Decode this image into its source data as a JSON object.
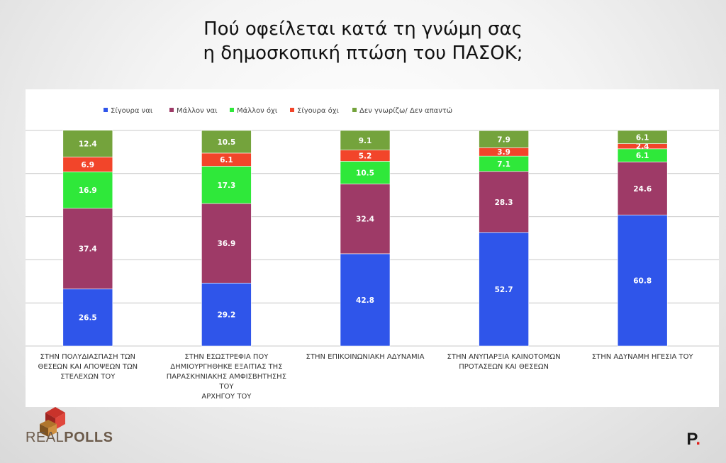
{
  "title_line1": "Πού οφείλεται κατά τη γνώμη σας",
  "title_line2": "η δημοσκοπική πτώση του ΠΑΣΟΚ;",
  "logo_left_text_part1": "REAL",
  "logo_left_text_part2": "POLLS",
  "logo_right_text": "P",
  "logo_right_dot": ".",
  "chart_data": {
    "type": "bar",
    "stacked": true,
    "categories": [
      [
        "ΣΤΗΝ ΠΟΛΥΔΙΑΣΠΑΣΗ ΤΩΝ",
        "ΘΕΣΕΩΝ ΚΑΙ ΑΠΟΨΕΩΝ ΤΩΝ",
        "ΣΤΕΛΕΧΩΝ ΤΟΥ"
      ],
      [
        "ΣΤΗΝ ΕΣΩΣΤΡΕΦΙΑ ΠΟΥ",
        "ΔΗΜΙΟΥΡΓΗΘΗΚΕ ΕΞΑΙΤΙΑΣ ΤΗΣ",
        "ΠΑΡΑΣΚΗΝΙΑΚΗΣ ΑΜΦΙΣΒΗΤΗΣΗΣ",
        "ΤΟΥ",
        "ΑΡΧΗΓΟΥ ΤΟΥ"
      ],
      [
        "ΣΤΗΝ ΕΠΙΚΟΙΝΩΝΙΑΚΗ ΑΔΥΝΑΜΙΑ"
      ],
      [
        "ΣΤΗΝ ΑΝΥΠΑΡΞΙΑ ΚΑΙΝΟΤΟΜΩΝ",
        "ΠΡΟΤΑΣΕΩΝ ΚΑΙ ΘΕΣΕΩΝ"
      ],
      [
        "ΣΤΗΝ ΑΔΥΝΑΜΗ ΗΓΕΣΙΑ ΤΟΥ"
      ]
    ],
    "series": [
      {
        "name": "Σίγουρα ναι",
        "color": "#2f55ea",
        "values": [
          26.5,
          29.2,
          42.8,
          52.7,
          60.8
        ]
      },
      {
        "name": "Μάλλον ναι",
        "color": "#9e3a67",
        "values": [
          37.4,
          36.9,
          32.4,
          28.3,
          24.6
        ]
      },
      {
        "name": "Μάλλον όχι",
        "color": "#2fe83a",
        "values": [
          16.9,
          17.3,
          10.5,
          7.1,
          6.1
        ]
      },
      {
        "name": "Σίγουρα όχι",
        "color": "#f2452a",
        "values": [
          6.9,
          6.1,
          5.2,
          3.9,
          2.4
        ]
      },
      {
        "name": "Δεν γνωρίζω/ Δεν απαντώ",
        "color": "#74a33c",
        "values": [
          12.4,
          10.5,
          9.1,
          7.9,
          6.1
        ]
      }
    ],
    "ylim": [
      0,
      100
    ],
    "grid": true,
    "legend": "top",
    "data_label_color": "#ffffff"
  }
}
